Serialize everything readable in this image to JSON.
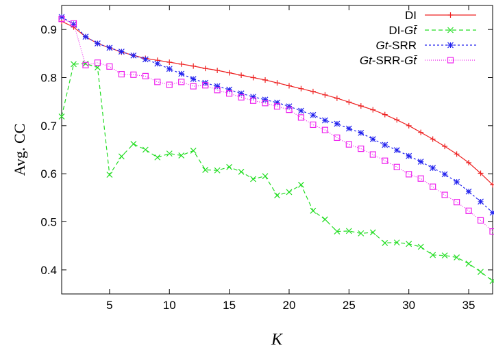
{
  "chart_data": {
    "type": "line",
    "xlabel": "K",
    "ylabel": "Avg. CC",
    "xlim": [
      1,
      37
    ],
    "ylim": [
      0.35,
      0.95
    ],
    "xticks": [
      5,
      10,
      15,
      20,
      25,
      30,
      35
    ],
    "yticks": [
      0.4,
      0.5,
      0.6,
      0.7,
      0.8,
      0.9
    ],
    "grid": false,
    "legend_position": "top-right",
    "x": [
      1,
      2,
      3,
      4,
      5,
      6,
      7,
      8,
      9,
      10,
      11,
      12,
      13,
      14,
      15,
      16,
      17,
      18,
      19,
      20,
      21,
      22,
      23,
      24,
      25,
      26,
      27,
      28,
      29,
      30,
      31,
      32,
      33,
      34,
      35,
      36,
      37
    ],
    "series": [
      {
        "name": "DI",
        "legend_label": [
          "DI",
          ""
        ],
        "color": "#ee2222",
        "dash": "",
        "marker": "plus",
        "values": [
          0.917,
          0.905,
          0.885,
          0.871,
          0.862,
          0.853,
          0.846,
          0.84,
          0.836,
          0.832,
          0.828,
          0.824,
          0.819,
          0.815,
          0.81,
          0.805,
          0.8,
          0.795,
          0.789,
          0.783,
          0.777,
          0.771,
          0.764,
          0.757,
          0.749,
          0.741,
          0.733,
          0.723,
          0.712,
          0.7,
          0.686,
          0.672,
          0.657,
          0.641,
          0.623,
          0.601,
          0.577
        ]
      },
      {
        "name": "DI-Gt̄",
        "legend_label": [
          "DI-",
          "Gt̄"
        ],
        "color": "#22dd22",
        "dash": "6,4",
        "marker": "x",
        "values": [
          0.719,
          0.828,
          0.829,
          0.821,
          0.598,
          0.636,
          0.662,
          0.65,
          0.634,
          0.642,
          0.638,
          0.648,
          0.608,
          0.607,
          0.614,
          0.604,
          0.589,
          0.595,
          0.555,
          0.562,
          0.577,
          0.523,
          0.505,
          0.48,
          0.481,
          0.476,
          0.478,
          0.456,
          0.457,
          0.454,
          0.448,
          0.431,
          0.43,
          0.426,
          0.413,
          0.396,
          0.377
        ]
      },
      {
        "name": "Gt-SRR",
        "legend_label": [
          "Gt",
          "-SRR"
        ],
        "color": "#2222ee",
        "dash": "3,3",
        "marker": "star",
        "values": [
          0.926,
          0.911,
          0.885,
          0.871,
          0.862,
          0.854,
          0.846,
          0.838,
          0.829,
          0.818,
          0.808,
          0.797,
          0.789,
          0.782,
          0.775,
          0.767,
          0.76,
          0.754,
          0.748,
          0.74,
          0.731,
          0.722,
          0.711,
          0.704,
          0.694,
          0.685,
          0.672,
          0.66,
          0.649,
          0.637,
          0.625,
          0.612,
          0.599,
          0.583,
          0.563,
          0.542,
          0.519
        ]
      },
      {
        "name": "Gt-SRR-Gt̄",
        "legend_label": [
          "Gt",
          "-SRR-",
          "Gt̄"
        ],
        "color": "#ee22ee",
        "dash": "1,2",
        "marker": "square",
        "values": [
          0.922,
          0.913,
          0.826,
          0.831,
          0.823,
          0.807,
          0.806,
          0.803,
          0.791,
          0.785,
          0.791,
          0.782,
          0.784,
          0.774,
          0.767,
          0.759,
          0.752,
          0.747,
          0.74,
          0.733,
          0.717,
          0.702,
          0.691,
          0.675,
          0.661,
          0.652,
          0.64,
          0.627,
          0.614,
          0.599,
          0.59,
          0.573,
          0.556,
          0.541,
          0.523,
          0.503,
          0.48
        ]
      }
    ]
  }
}
